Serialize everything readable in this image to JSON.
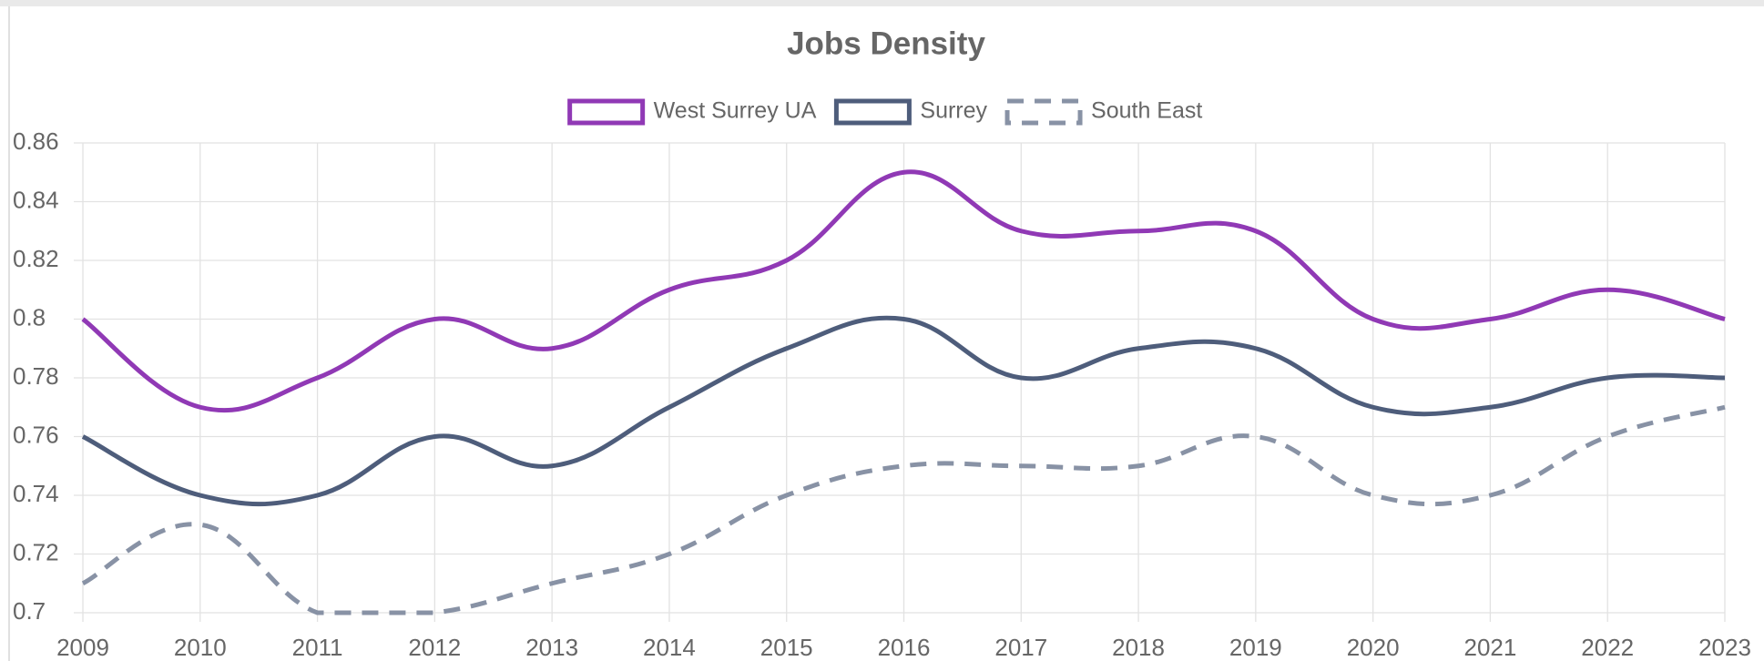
{
  "chart_data": {
    "type": "line",
    "title": "Jobs Density",
    "categories": [
      "2009",
      "2010",
      "2011",
      "2012",
      "2013",
      "2014",
      "2015",
      "2016",
      "2017",
      "2018",
      "2019",
      "2020",
      "2021",
      "2022",
      "2023"
    ],
    "series": [
      {
        "name": "West Surrey UA",
        "color": "#9039b5",
        "dashed": false,
        "values": [
          0.8,
          0.77,
          0.78,
          0.8,
          0.79,
          0.81,
          0.82,
          0.85,
          0.83,
          0.83,
          0.83,
          0.8,
          0.8,
          0.81,
          0.8
        ]
      },
      {
        "name": "Surrey",
        "color": "#4e5d7b",
        "dashed": false,
        "values": [
          0.76,
          0.74,
          0.74,
          0.76,
          0.75,
          0.77,
          0.79,
          0.8,
          0.78,
          0.79,
          0.79,
          0.77,
          0.77,
          0.78,
          0.78
        ]
      },
      {
        "name": "South East",
        "color": "#8892a5",
        "dashed": true,
        "values": [
          0.71,
          0.73,
          0.7,
          0.7,
          0.71,
          0.72,
          0.74,
          0.75,
          0.75,
          0.75,
          0.76,
          0.74,
          0.74,
          0.76,
          0.77
        ]
      }
    ],
    "ylim": [
      0.7,
      0.86
    ],
    "yticks": [
      0.7,
      0.72,
      0.74,
      0.76,
      0.78,
      0.8,
      0.82,
      0.84,
      0.86
    ],
    "grid": true,
    "legend": "top"
  }
}
